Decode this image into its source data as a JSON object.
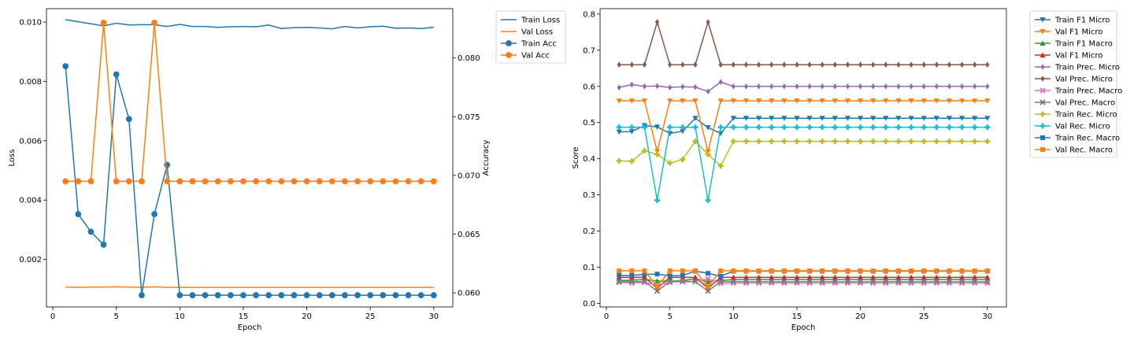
{
  "chart_data": [
    {
      "type": "line",
      "xlabel": "Epoch",
      "ylabel": "Loss",
      "y2label": "Accuracy",
      "xlim": [
        -0.5,
        31.5
      ],
      "ylim": [
        0.0004,
        0.01045
      ],
      "y2lim": [
        0.0588,
        0.0842
      ],
      "xticks": [
        0,
        5,
        10,
        15,
        20,
        25,
        30
      ],
      "yticks": [
        0.002,
        0.004,
        0.006,
        0.008,
        0.01
      ],
      "y2ticks": [
        0.06,
        0.065,
        0.07,
        0.075,
        0.08
      ],
      "legend_position": "outside-top-right",
      "x": [
        1,
        2,
        3,
        4,
        5,
        6,
        7,
        8,
        9,
        10,
        11,
        12,
        13,
        14,
        15,
        16,
        17,
        18,
        19,
        20,
        21,
        22,
        23,
        24,
        25,
        26,
        27,
        28,
        29,
        30
      ],
      "series": [
        {
          "name": "Train Loss",
          "axis": "left",
          "color": "#1f77b4",
          "marker": "none",
          "values": [
            0.01008,
            0.01001,
            0.00994,
            0.00987,
            0.00996,
            0.0099,
            0.00991,
            0.00991,
            0.00985,
            0.00992,
            0.00985,
            0.00985,
            0.00982,
            0.00984,
            0.00985,
            0.00984,
            0.0099,
            0.00978,
            0.00981,
            0.00982,
            0.0098,
            0.00977,
            0.00985,
            0.0098,
            0.00984,
            0.00986,
            0.00979,
            0.0098,
            0.00978,
            0.00982
          ]
        },
        {
          "name": "Val Loss",
          "axis": "left",
          "color": "#ff7f0e",
          "marker": "none",
          "values": [
            0.00107,
            0.00106,
            0.00107,
            0.00107,
            0.00108,
            0.00107,
            0.00106,
            0.00108,
            0.00106,
            0.00106,
            0.00106,
            0.00106,
            0.00106,
            0.00106,
            0.00106,
            0.00106,
            0.00106,
            0.00106,
            0.00106,
            0.00106,
            0.00106,
            0.00106,
            0.00106,
            0.00106,
            0.00106,
            0.00106,
            0.00106,
            0.00106,
            0.00106,
            0.00106
          ]
        },
        {
          "name": "Train Acc",
          "axis": "right",
          "color": "#1f77b4",
          "marker": "o",
          "values": [
            0.0793,
            0.0667,
            0.0652,
            0.0641,
            0.0786,
            0.0748,
            0.0598,
            0.0667,
            0.0709,
            0.0598,
            0.0598,
            0.0598,
            0.0598,
            0.0598,
            0.0598,
            0.0598,
            0.0598,
            0.0598,
            0.0598,
            0.0598,
            0.0598,
            0.0598,
            0.0598,
            0.0598,
            0.0598,
            0.0598,
            0.0598,
            0.0598,
            0.0598,
            0.0598
          ]
        },
        {
          "name": "Val Acc",
          "axis": "right",
          "color": "#ff7f0e",
          "marker": "o",
          "values": [
            0.0695,
            0.0695,
            0.0695,
            0.083,
            0.0695,
            0.0695,
            0.0695,
            0.083,
            0.0695,
            0.0695,
            0.0695,
            0.0695,
            0.0695,
            0.0695,
            0.0695,
            0.0695,
            0.0695,
            0.0695,
            0.0695,
            0.0695,
            0.0695,
            0.0695,
            0.0695,
            0.0695,
            0.0695,
            0.0695,
            0.0695,
            0.0695,
            0.0695,
            0.0695
          ]
        }
      ]
    },
    {
      "type": "line",
      "xlabel": "Epoch",
      "ylabel": "Score",
      "xlim": [
        -0.5,
        31.5
      ],
      "ylim": [
        -0.01,
        0.815
      ],
      "xticks": [
        0,
        5,
        10,
        15,
        20,
        25,
        30
      ],
      "yticks": [
        0.0,
        0.1,
        0.2,
        0.3,
        0.4,
        0.5,
        0.6,
        0.7,
        0.8
      ],
      "legend_position": "outside-top-right",
      "x": [
        1,
        2,
        3,
        4,
        5,
        6,
        7,
        8,
        9,
        10,
        11,
        12,
        13,
        14,
        15,
        16,
        17,
        18,
        19,
        20,
        21,
        22,
        23,
        24,
        25,
        26,
        27,
        28,
        29,
        30
      ],
      "series": [
        {
          "name": "Train F1 Micro",
          "color": "#1f77b4",
          "marker": "v",
          "values": [
            0.474,
            0.475,
            0.492,
            0.488,
            0.47,
            0.476,
            0.512,
            0.486,
            0.47,
            0.512,
            0.512,
            0.512,
            0.512,
            0.512,
            0.512,
            0.512,
            0.512,
            0.512,
            0.512,
            0.512,
            0.512,
            0.512,
            0.512,
            0.512,
            0.512,
            0.512,
            0.512,
            0.512,
            0.512,
            0.512
          ]
        },
        {
          "name": "Val F1 Micro",
          "color": "#ff7f0e",
          "marker": "v",
          "values": [
            0.56,
            0.56,
            0.56,
            0.42,
            0.56,
            0.56,
            0.56,
            0.42,
            0.56,
            0.56,
            0.56,
            0.56,
            0.56,
            0.56,
            0.56,
            0.56,
            0.56,
            0.56,
            0.56,
            0.56,
            0.56,
            0.56,
            0.56,
            0.56,
            0.56,
            0.56,
            0.56,
            0.56,
            0.56,
            0.56
          ]
        },
        {
          "name": "Train F1 Macro",
          "color": "#2ca02c",
          "marker": "^",
          "values": [
            0.063,
            0.064,
            0.066,
            0.062,
            0.061,
            0.063,
            0.068,
            0.06,
            0.063,
            0.066,
            0.066,
            0.066,
            0.066,
            0.066,
            0.066,
            0.066,
            0.066,
            0.066,
            0.066,
            0.066,
            0.066,
            0.066,
            0.066,
            0.066,
            0.066,
            0.066,
            0.066,
            0.066,
            0.066,
            0.066
          ]
        },
        {
          "name": "Val F1 Micro",
          "color": "#d62728",
          "marker": "^",
          "values": [
            0.072,
            0.072,
            0.072,
            0.042,
            0.072,
            0.072,
            0.072,
            0.042,
            0.072,
            0.072,
            0.072,
            0.072,
            0.072,
            0.072,
            0.072,
            0.072,
            0.072,
            0.072,
            0.072,
            0.072,
            0.072,
            0.072,
            0.072,
            0.072,
            0.072,
            0.072,
            0.072,
            0.072,
            0.072,
            0.072
          ]
        },
        {
          "name": "Train Prec. Micro",
          "color": "#9467bd",
          "marker": "d",
          "values": [
            0.597,
            0.605,
            0.6,
            0.601,
            0.597,
            0.599,
            0.598,
            0.586,
            0.612,
            0.6,
            0.6,
            0.6,
            0.6,
            0.6,
            0.6,
            0.6,
            0.6,
            0.6,
            0.6,
            0.6,
            0.6,
            0.6,
            0.6,
            0.6,
            0.6,
            0.6,
            0.6,
            0.6,
            0.6,
            0.6
          ]
        },
        {
          "name": "Val Prec. Micro",
          "color": "#8c564b",
          "marker": "d",
          "values": [
            0.66,
            0.66,
            0.66,
            0.778,
            0.66,
            0.66,
            0.66,
            0.778,
            0.66,
            0.66,
            0.66,
            0.66,
            0.66,
            0.66,
            0.66,
            0.66,
            0.66,
            0.66,
            0.66,
            0.66,
            0.66,
            0.66,
            0.66,
            0.66,
            0.66,
            0.66,
            0.66,
            0.66,
            0.66,
            0.66
          ]
        },
        {
          "name": "Train Prec. Macro",
          "color": "#e377c2",
          "marker": "x",
          "values": [
            0.058,
            0.056,
            0.058,
            0.05,
            0.058,
            0.062,
            0.06,
            0.068,
            0.055,
            0.056,
            0.056,
            0.056,
            0.056,
            0.056,
            0.056,
            0.056,
            0.056,
            0.056,
            0.056,
            0.056,
            0.056,
            0.056,
            0.056,
            0.056,
            0.056,
            0.056,
            0.056,
            0.056,
            0.056,
            0.056
          ]
        },
        {
          "name": "Val Prec. Macro",
          "color": "#7f7f7f",
          "marker": "x",
          "values": [
            0.06,
            0.06,
            0.06,
            0.034,
            0.06,
            0.06,
            0.06,
            0.034,
            0.06,
            0.06,
            0.06,
            0.06,
            0.06,
            0.06,
            0.06,
            0.06,
            0.06,
            0.06,
            0.06,
            0.06,
            0.06,
            0.06,
            0.06,
            0.06,
            0.06,
            0.06,
            0.06,
            0.06,
            0.06,
            0.06
          ]
        },
        {
          "name": "Train Rec. Micro",
          "color": "#bcbd22",
          "marker": "P",
          "values": [
            0.394,
            0.393,
            0.422,
            0.412,
            0.388,
            0.398,
            0.448,
            0.412,
            0.38,
            0.448,
            0.448,
            0.448,
            0.448,
            0.448,
            0.448,
            0.448,
            0.448,
            0.448,
            0.448,
            0.448,
            0.448,
            0.448,
            0.448,
            0.448,
            0.448,
            0.448,
            0.448,
            0.448,
            0.448,
            0.448
          ]
        },
        {
          "name": "Val Rec. Micro",
          "color": "#17becf",
          "marker": "P",
          "values": [
            0.487,
            0.487,
            0.487,
            0.285,
            0.487,
            0.487,
            0.487,
            0.285,
            0.487,
            0.487,
            0.487,
            0.487,
            0.487,
            0.487,
            0.487,
            0.487,
            0.487,
            0.487,
            0.487,
            0.487,
            0.487,
            0.487,
            0.487,
            0.487,
            0.487,
            0.487,
            0.487,
            0.487,
            0.487,
            0.487
          ]
        },
        {
          "name": "Train Rec. Macro",
          "color": "#1f77b4",
          "marker": "s",
          "values": [
            0.077,
            0.077,
            0.08,
            0.081,
            0.076,
            0.077,
            0.089,
            0.083,
            0.075,
            0.089,
            0.089,
            0.089,
            0.089,
            0.089,
            0.089,
            0.089,
            0.089,
            0.089,
            0.089,
            0.089,
            0.089,
            0.089,
            0.089,
            0.089,
            0.089,
            0.089,
            0.089,
            0.089,
            0.089,
            0.089
          ]
        },
        {
          "name": "Val Rec. Macro",
          "color": "#ff7f0e",
          "marker": "s",
          "values": [
            0.09,
            0.09,
            0.09,
            0.046,
            0.09,
            0.09,
            0.09,
            0.046,
            0.09,
            0.09,
            0.09,
            0.09,
            0.09,
            0.09,
            0.09,
            0.09,
            0.09,
            0.09,
            0.09,
            0.09,
            0.09,
            0.09,
            0.09,
            0.09,
            0.09,
            0.09,
            0.09,
            0.09,
            0.09,
            0.09
          ]
        }
      ]
    }
  ]
}
